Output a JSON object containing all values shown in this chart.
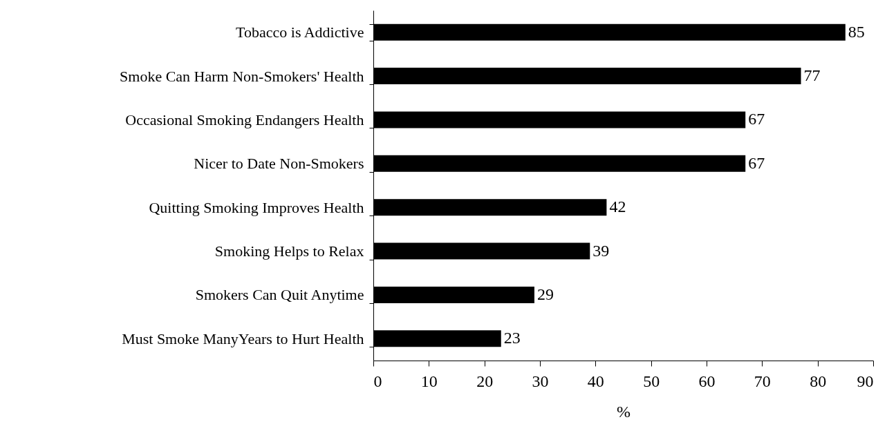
{
  "chart_data": {
    "type": "bar",
    "orientation": "horizontal",
    "xlabel": "%",
    "categories": [
      "Tobacco is Addictive",
      "Smoke Can Harm Non-Smokers' Health",
      "Occasional Smoking Endangers Health",
      "Nicer to Date Non-Smokers",
      "Quitting Smoking Improves Health",
      "Smoking Helps to Relax",
      "Smokers Can Quit Anytime",
      "Must Smoke ManyYears to Hurt Health"
    ],
    "values": [
      85,
      77,
      67,
      67,
      42,
      39,
      29,
      23
    ],
    "color": "#000000",
    "data_labels": true,
    "grid": false,
    "xlim": [
      0,
      90
    ],
    "xticks": [
      0,
      10,
      20,
      30,
      40,
      50,
      60,
      70,
      80,
      90
    ]
  }
}
